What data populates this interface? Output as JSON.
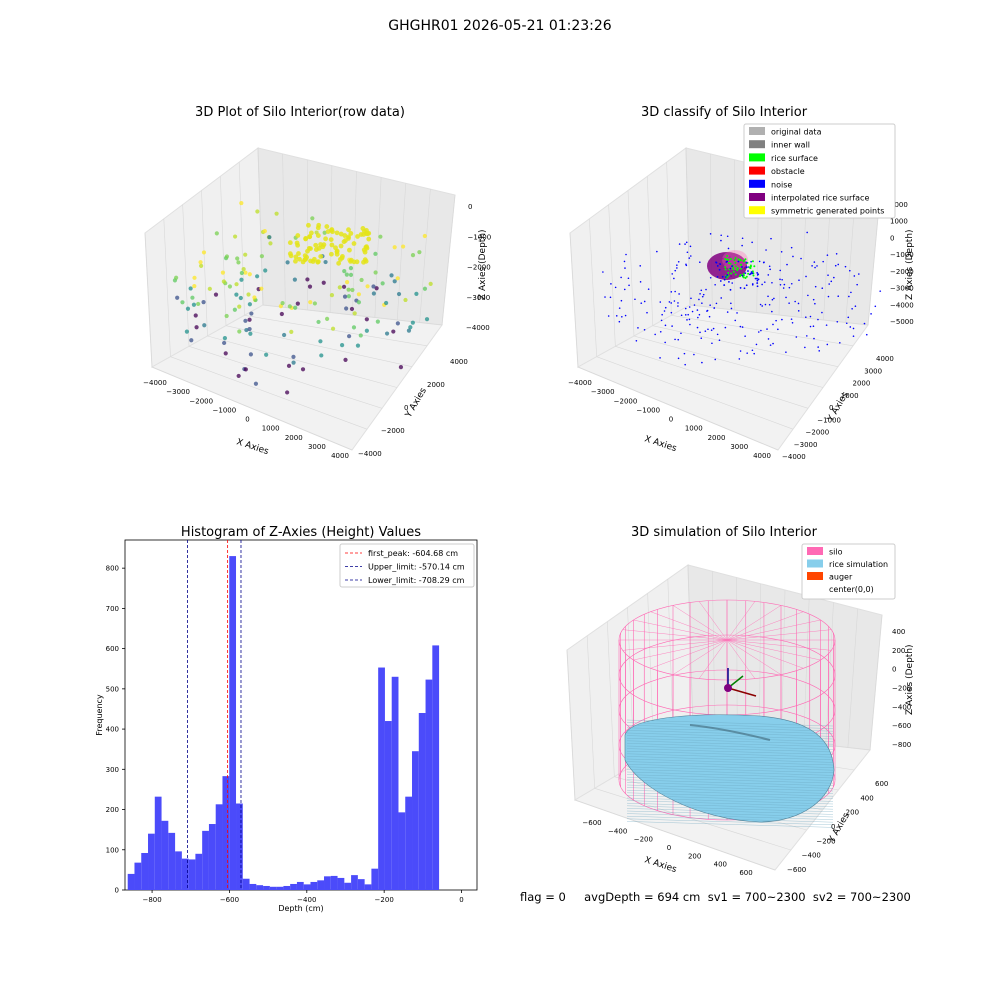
{
  "suptitle": "GHGHR01 2026-05-21 01:23:26",
  "status_line": "flag = 0     avgDepth = 694 cm  sv1 = 700~2300  sv2 = 700~2300",
  "colors": {
    "inner_wall": "#808080",
    "original": "#b0b0b0",
    "rice_surface": "#00ff00",
    "obstacle": "#ff0000",
    "noise": "#0000ff",
    "interpolated": "#800080",
    "symmetric": "#ffff00",
    "hist_bar": "#4b4bfa",
    "silo": "#ff69b4",
    "rice_sim": "#87ceeb",
    "auger": "#ff4500"
  },
  "chart_data": [
    {
      "type": "scatter",
      "title": "3D Plot of Silo Interior(row data)",
      "xlabel": "X Axies",
      "ylabel": "Y Axies",
      "zlabel": "Z Axies (Depth)",
      "xticks": [
        "−4000",
        "−3000",
        "−2000",
        "−1000",
        "0",
        "1000",
        "2000",
        "3000",
        "4000"
      ],
      "yticks": [
        "−4000",
        "−2000",
        "0",
        "2000",
        "4000"
      ],
      "zticks": [
        "0",
        "−1000",
        "−2000",
        "−3000",
        "−4000"
      ]
    },
    {
      "type": "scatter",
      "title": "3D classify of Silo Interior",
      "xlabel": "X Axies",
      "ylabel": "Y Axies",
      "zlabel": "Z Axies (Depth)",
      "xticks": [
        "−4000",
        "−3000",
        "−2000",
        "−1000",
        "0",
        "1000",
        "2000",
        "3000",
        "4000"
      ],
      "yticks": [
        "−4000",
        "−3000",
        "−2000",
        "−1000",
        "0",
        "1000",
        "2000",
        "3000",
        "4000"
      ],
      "zticks": [
        "2000",
        "1000",
        "0",
        "−1000",
        "−2000",
        "−3000",
        "−4000",
        "−5000"
      ],
      "legend_position": "top-right",
      "legend": [
        "original data",
        "inner wall",
        "rice surface",
        "obstacle",
        "noise",
        "interpolated rice surface",
        "symmetric generated points"
      ]
    },
    {
      "type": "bar",
      "title": "Histogram of Z-Axies (Height) Values",
      "xlabel": "Depth (cm)",
      "ylabel": "Frequency",
      "xlim": [
        -870,
        40
      ],
      "ylim": [
        0,
        870
      ],
      "xticks": [
        -800,
        -600,
        -400,
        -200,
        0
      ],
      "xtick_labels": [
        "−800",
        "−600",
        "−400",
        "−200",
        "0"
      ],
      "yticks": [
        0,
        100,
        200,
        300,
        400,
        500,
        600,
        700,
        800
      ],
      "bin_start": -863,
      "bin_width": 17.5,
      "values": [
        40,
        68,
        92,
        140,
        232,
        172,
        142,
        96,
        78,
        76,
        90,
        147,
        164,
        213,
        283,
        830,
        215,
        28,
        15,
        12,
        10,
        8,
        8,
        10,
        15,
        20,
        14,
        20,
        24,
        34,
        35,
        30,
        18,
        37,
        27,
        14,
        53,
        553,
        420,
        530,
        193,
        232,
        345,
        440,
        523,
        608
      ],
      "first_peak": -604.68,
      "upper_limit": -570.14,
      "lower_limit": -708.29,
      "legend_position": "top-right",
      "legend": [
        "first_peak: -604.68 cm",
        "Upper_limit: -570.14 cm",
        "Lower_limit: -708.29 cm"
      ]
    },
    {
      "type": "surface",
      "title": "3D simulation of Silo Interior",
      "xlabel": "X Axies",
      "ylabel": "Y Axies",
      "zlabel": "Z Axies (Depth)",
      "xticks": [
        "−600",
        "−400",
        "−200",
        "0",
        "200",
        "400",
        "600"
      ],
      "yticks": [
        "−600",
        "−400",
        "−200",
        "0",
        "200",
        "400",
        "600"
      ],
      "zticks": [
        "400",
        "200",
        "0",
        "−200",
        "−400",
        "−600",
        "−800"
      ],
      "legend_position": "top-right",
      "legend": [
        "silo",
        "rice simulation",
        "auger",
        "center(0,0)"
      ]
    }
  ]
}
